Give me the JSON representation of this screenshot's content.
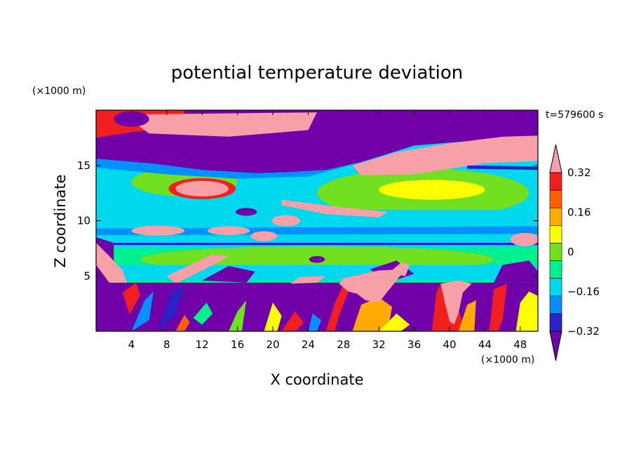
{
  "chart_data": {
    "type": "heatmap",
    "title": "potential temperature deviation",
    "xlabel": "X coordinate",
    "ylabel": "Z coordinate",
    "x_unit": "(×1000 m)",
    "y_unit": "(×1000 m)",
    "time_label": "t=579600 s",
    "xlim": [
      0,
      50
    ],
    "ylim": [
      0,
      20
    ],
    "x_ticks": [
      4,
      8,
      12,
      16,
      20,
      24,
      28,
      32,
      36,
      40,
      44,
      48
    ],
    "y_ticks": [
      5,
      10,
      15
    ],
    "colorbar": {
      "levels": [
        -0.4,
        -0.32,
        -0.24,
        -0.16,
        -0.08,
        0,
        0.08,
        0.16,
        0.24,
        0.32,
        0.4
      ],
      "tick_values": [
        0.32,
        0.16,
        0,
        -0.16,
        -0.32
      ],
      "tick_labels": [
        "0.32",
        "0.16",
        "0",
        "−0.16",
        "−0.32"
      ],
      "extend": "both",
      "colors": [
        "#7000a8",
        "#2a22c8",
        "#0090ff",
        "#00d8f0",
        "#00f090",
        "#70e020",
        "#ffff00",
        "#ffaa00",
        "#ff6000",
        "#f02020",
        "#f8a0a8"
      ]
    },
    "fields_shown": "filled contours of potential temperature deviation over X–Z cross-section",
    "grid": false
  }
}
